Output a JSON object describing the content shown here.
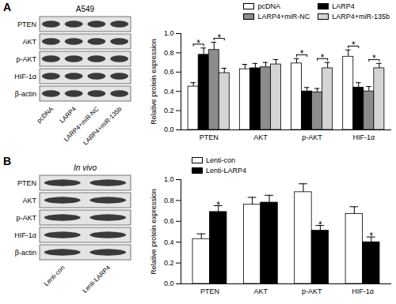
{
  "panels": [
    {
      "label": "A",
      "blot": {
        "title": "A549",
        "rows": [
          "PTEN",
          "AKT",
          "p-AKT",
          "HIF-1α",
          "β-actin"
        ],
        "lanes": [
          "pcDNA",
          "LARP4",
          "LARP4+miR-NC",
          "LARP4+miR-135b"
        ]
      }
    },
    {
      "label": "B",
      "blot": {
        "title": "In vivo",
        "rows": [
          "PTEN",
          "AKT",
          "p-AKT",
          "HIF-1α",
          "β-actin"
        ],
        "lanes": [
          "Lenti-con",
          "Lenti-LARP4"
        ]
      }
    }
  ],
  "chart_data": [
    {
      "type": "bar",
      "categories": [
        "PTEN",
        "AKT",
        "p-AKT",
        "HIF-1α"
      ],
      "series": [
        {
          "name": "pcDNA",
          "color": "#ffffff",
          "values": [
            0.45,
            0.63,
            0.69,
            0.76
          ],
          "errors": [
            0.04,
            0.05,
            0.05,
            0.07
          ]
        },
        {
          "name": "LARP4",
          "color": "#000000",
          "values": [
            0.78,
            0.64,
            0.4,
            0.44
          ],
          "errors": [
            0.07,
            0.05,
            0.04,
            0.05
          ]
        },
        {
          "name": "LARP4+miR-NC",
          "color": "#8c8c8c",
          "values": [
            0.83,
            0.65,
            0.39,
            0.4
          ],
          "errors": [
            0.08,
            0.05,
            0.04,
            0.05
          ]
        },
        {
          "name": "LARP4+miR-135b",
          "color": "#d4d4d4",
          "values": [
            0.59,
            0.68,
            0.64,
            0.64
          ],
          "errors": [
            0.05,
            0.05,
            0.06,
            0.05
          ]
        }
      ],
      "ylabel": "Relative protein expression",
      "ylim": [
        0,
        1
      ],
      "yticks": [
        {
          "value": 0,
          "label": "0.0"
        },
        0.2,
        0.4,
        0.6,
        0.8,
        {
          "value": 1,
          "label": "1.0"
        }
      ],
      "grid": false,
      "legend": "top-right",
      "annotations": [
        {
          "category": "PTEN",
          "series": [
            "pcDNA",
            "LARP4"
          ],
          "text": "*"
        },
        {
          "category": "PTEN",
          "series": [
            "LARP4+miR-NC",
            "LARP4+miR-135b"
          ],
          "text": "*"
        },
        {
          "category": "p-AKT",
          "series": [
            "pcDNA",
            "LARP4"
          ],
          "text": "*"
        },
        {
          "category": "p-AKT",
          "series": [
            "LARP4+miR-NC",
            "LARP4+miR-135b"
          ],
          "text": "*"
        },
        {
          "category": "HIF-1α",
          "series": [
            "pcDNA",
            "LARP4"
          ],
          "text": "*"
        },
        {
          "category": "HIF-1α",
          "series": [
            "LARP4+miR-NC",
            "LARP4+miR-135b"
          ],
          "text": "*"
        }
      ]
    },
    {
      "type": "bar",
      "categories": [
        "PTEN",
        "AKT",
        "p-AKT",
        "HIF-1α"
      ],
      "series": [
        {
          "name": "Lenti-con",
          "color": "#ffffff",
          "values": [
            0.43,
            0.76,
            0.88,
            0.67
          ],
          "errors": [
            0.05,
            0.07,
            0.08,
            0.07
          ]
        },
        {
          "name": "Lenti-LARP4",
          "color": "#000000",
          "values": [
            0.69,
            0.78,
            0.51,
            0.4
          ],
          "errors": [
            0.06,
            0.07,
            0.05,
            0.05
          ]
        }
      ],
      "ylabel": "Relative protein expression",
      "ylim": [
        0,
        1
      ],
      "yticks": [
        {
          "value": 0,
          "label": "0.0"
        },
        0.2,
        0.4,
        0.6,
        0.8,
        {
          "value": 1,
          "label": "1.0"
        }
      ],
      "grid": false,
      "legend": "top-left",
      "annotations": [
        {
          "category": "PTEN",
          "series": [
            "Lenti-LARP4"
          ],
          "text": "*"
        },
        {
          "category": "p-AKT",
          "series": [
            "Lenti-LARP4"
          ],
          "text": "*"
        },
        {
          "category": "HIF-1α",
          "series": [
            "Lenti-LARP4"
          ],
          "text": "*"
        }
      ]
    }
  ]
}
